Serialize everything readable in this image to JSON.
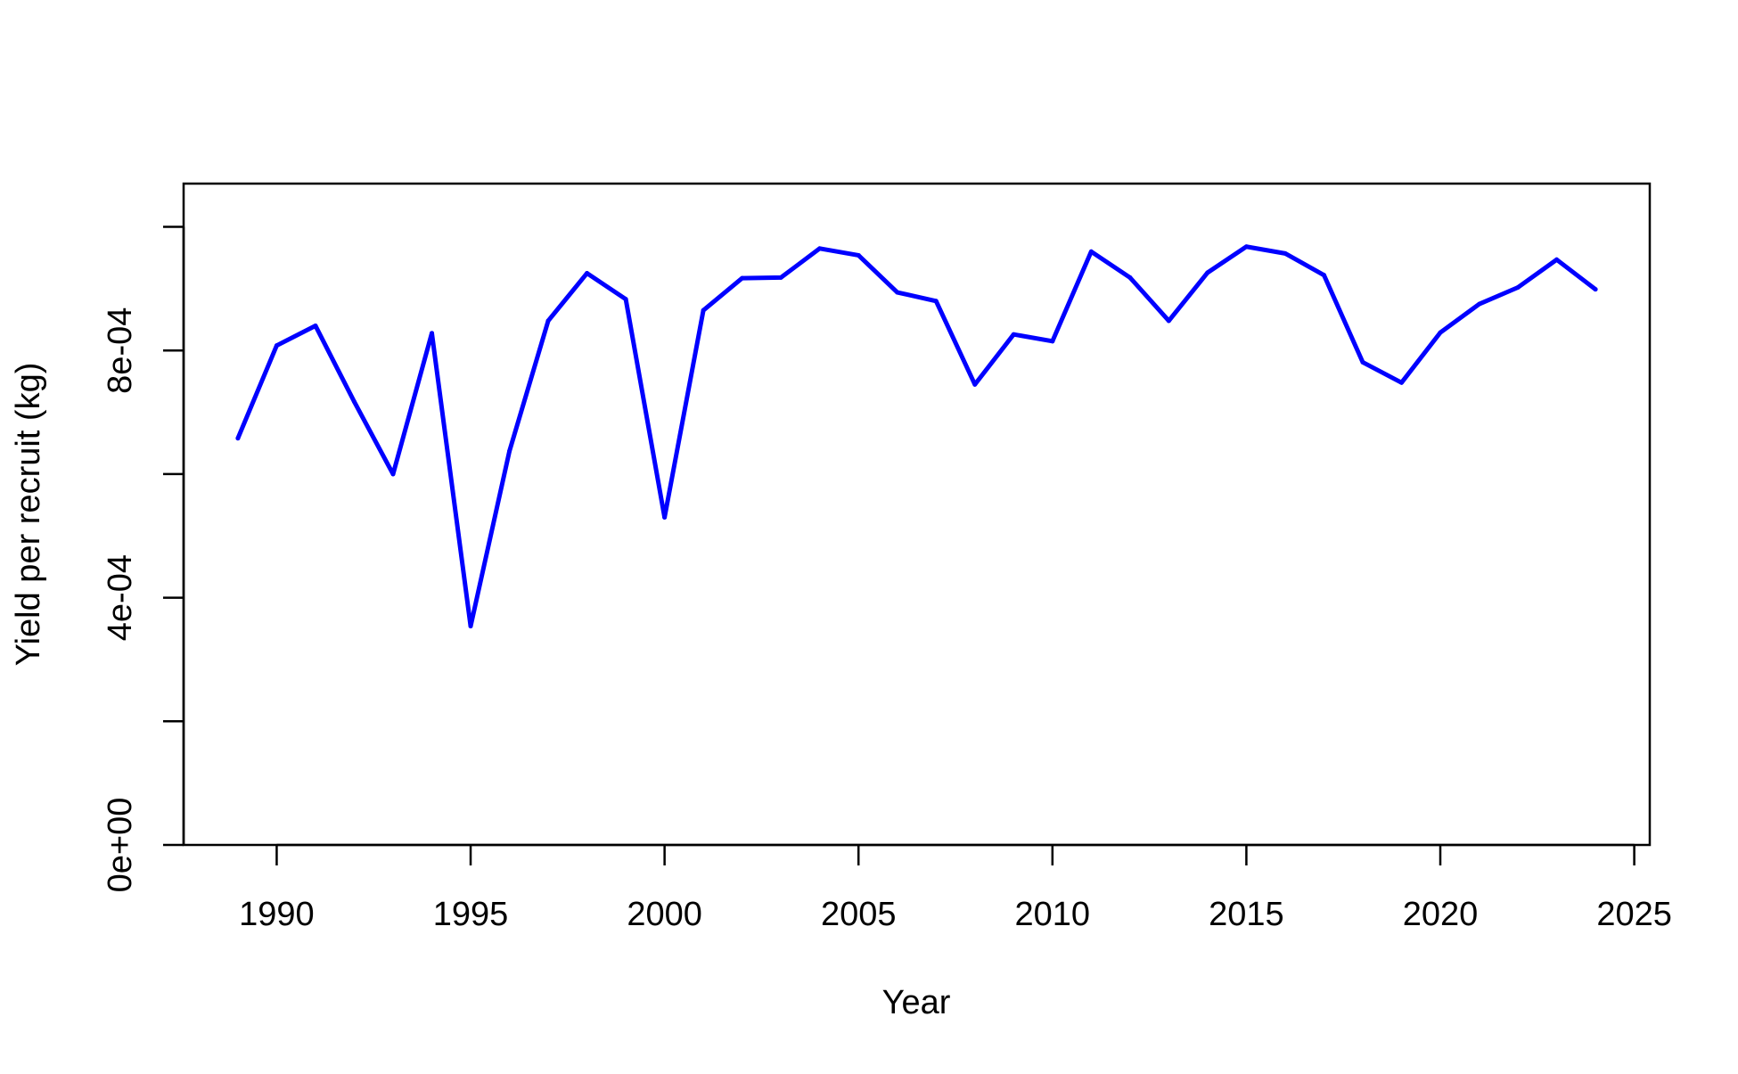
{
  "chart_data": {
    "type": "line",
    "title": "",
    "xlabel": "Year",
    "ylabel": "Yield per recruit (kg)",
    "xlim": [
      1987.6,
      2025.4
    ],
    "ylim": [
      0,
      0.00107
    ],
    "xticks": [
      {
        "value": 1990,
        "label": "1990"
      },
      {
        "value": 1995,
        "label": "1995"
      },
      {
        "value": 2000,
        "label": "2000"
      },
      {
        "value": 2005,
        "label": "2005"
      },
      {
        "value": 2010,
        "label": "2010"
      },
      {
        "value": 2015,
        "label": "2015"
      },
      {
        "value": 2020,
        "label": "2020"
      },
      {
        "value": 2025,
        "label": "2025"
      }
    ],
    "yticks": [
      {
        "value": 0,
        "label": "0e+00"
      },
      {
        "value": 0.0002,
        "label": ""
      },
      {
        "value": 0.0004,
        "label": "4e-04"
      },
      {
        "value": 0.0006,
        "label": ""
      },
      {
        "value": 0.0008,
        "label": "8e-04"
      },
      {
        "value": 0.001,
        "label": ""
      }
    ],
    "grid": false,
    "series": [
      {
        "color": "#0000ff",
        "x": [
          1989,
          1990,
          1991,
          1992,
          1993,
          1994,
          1995,
          1996,
          1997,
          1998,
          1999,
          2000,
          2001,
          2002,
          2003,
          2004,
          2005,
          2006,
          2007,
          2008,
          2009,
          2010,
          2011,
          2012,
          2013,
          2014,
          2015,
          2016,
          2017,
          2018,
          2019,
          2020,
          2021,
          2022,
          2023,
          2024
        ],
        "values": [
          0.000658,
          0.000808,
          0.00084,
          0.000717,
          0.0006,
          0.000828,
          0.000354,
          0.000637,
          0.000848,
          0.000925,
          0.000883,
          0.00053,
          0.000865,
          0.000917,
          0.000918,
          0.000965,
          0.000954,
          0.000894,
          0.00088,
          0.000745,
          0.000826,
          0.000815,
          0.00096,
          0.000918,
          0.000848,
          0.000926,
          0.000968,
          0.000957,
          0.000922,
          0.000781,
          0.000748,
          0.000829,
          0.000875,
          0.000902,
          0.000947,
          0.000899
        ]
      }
    ]
  }
}
